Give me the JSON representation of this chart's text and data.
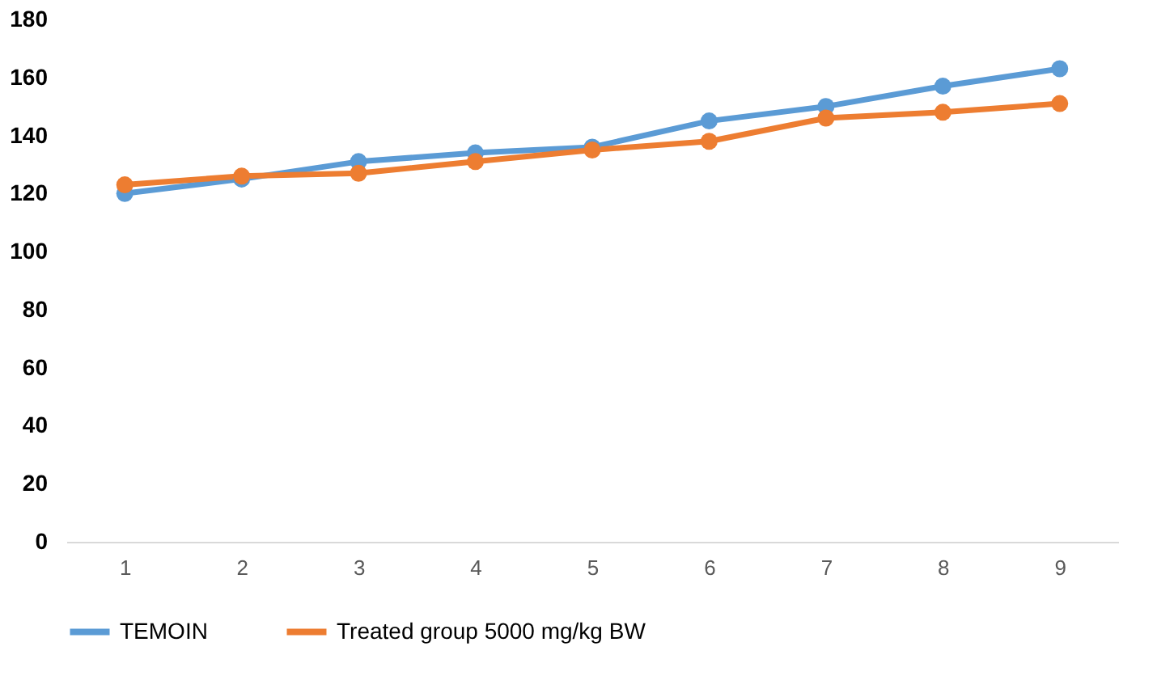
{
  "chart_data": {
    "type": "line",
    "categories": [
      "1",
      "2",
      "3",
      "4",
      "5",
      "6",
      "7",
      "8",
      "9"
    ],
    "series": [
      {
        "name": "TEMOIN",
        "color": "#5b9bd5",
        "values": [
          120,
          125,
          131,
          134,
          136,
          145,
          150,
          157,
          163
        ]
      },
      {
        "name": "Treated group 5000 mg/kg BW",
        "color": "#ed7d31",
        "values": [
          123,
          126,
          127,
          131,
          135,
          138,
          146,
          148,
          151
        ]
      }
    ],
    "ylim": [
      0,
      180
    ],
    "yticks": [
      0,
      20,
      40,
      60,
      80,
      100,
      120,
      140,
      160,
      180
    ],
    "grid": false,
    "legend": "bottom",
    "marker": "circle",
    "line_style": "solid"
  }
}
